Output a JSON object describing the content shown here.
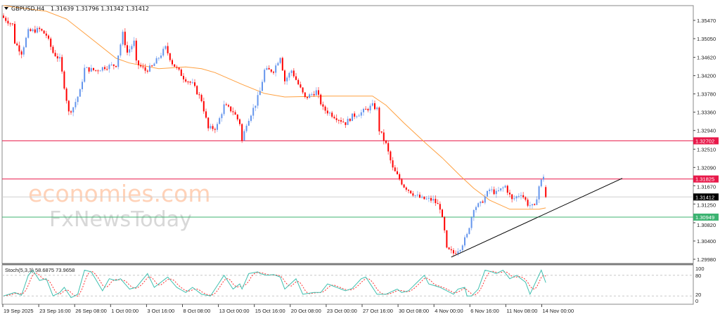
{
  "header": {
    "symbol": "GBPUSD,H4",
    "ohlc": "1.31639 1.31796 1.31342 1.31412"
  },
  "watermark": {
    "line1": "economies.com",
    "line2": "FxNewsToday"
  },
  "price_axis": {
    "ticks": [
      "1.35470",
      "1.35050",
      "1.34620",
      "1.34200",
      "1.33780",
      "1.33360",
      "1.32940",
      "1.32510",
      "1.32090",
      "1.31670",
      "1.31250",
      "1.30820",
      "1.30400",
      "1.29980"
    ],
    "range": [
      1.2998,
      1.3547
    ]
  },
  "levels": [
    {
      "label": "1.32702",
      "price": 1.32702,
      "color": "#e8194a"
    },
    {
      "label": "1.31825",
      "price": 1.31825,
      "color": "#e8194a"
    },
    {
      "label": "1.31412",
      "price": 1.31412,
      "color": "#000000"
    },
    {
      "label": "1.30949",
      "price": 1.30949,
      "color": "#3cb371"
    }
  ],
  "colors": {
    "bull": "#6495ed",
    "bear": "#ff0000",
    "ma": "#ffa040",
    "stoch_main": "#40c0b0",
    "stoch_signal": "#ff3030",
    "trendline": "#000000"
  },
  "chart_data": {
    "type": "candlestick",
    "timeframe": "H4",
    "close_path": [
      [
        0,
        1.3553
      ],
      [
        4,
        1.3537
      ],
      [
        5,
        1.3497
      ],
      [
        8,
        1.3473
      ],
      [
        11,
        1.3521
      ],
      [
        16,
        1.3526
      ],
      [
        19,
        1.3513
      ],
      [
        22,
        1.3473
      ],
      [
        25,
        1.3457
      ],
      [
        29,
        1.3335
      ],
      [
        31,
        1.3348
      ],
      [
        34,
        1.3384
      ],
      [
        36,
        1.3436
      ],
      [
        41,
        1.3432
      ],
      [
        45,
        1.344
      ],
      [
        50,
        1.3445
      ],
      [
        53,
        1.3516
      ],
      [
        55,
        1.3473
      ],
      [
        58,
        1.3497
      ],
      [
        59,
        1.3449
      ],
      [
        63,
        1.3432
      ],
      [
        66,
        1.344
      ],
      [
        72,
        1.3484
      ],
      [
        75,
        1.3449
      ],
      [
        80,
        1.3416
      ],
      [
        84,
        1.34
      ],
      [
        88,
        1.3364
      ],
      [
        91,
        1.3298
      ],
      [
        94,
        1.33
      ],
      [
        95,
        1.3306
      ],
      [
        98,
        1.3351
      ],
      [
        102,
        1.3338
      ],
      [
        105,
        1.3311
      ],
      [
        106,
        1.327
      ],
      [
        108,
        1.3311
      ],
      [
        112,
        1.3355
      ],
      [
        114,
        1.3384
      ],
      [
        116,
        1.3432
      ],
      [
        120,
        1.3432
      ],
      [
        123,
        1.3465
      ],
      [
        125,
        1.3408
      ],
      [
        128,
        1.3432
      ],
      [
        131,
        1.34
      ],
      [
        134,
        1.3368
      ],
      [
        139,
        1.3384
      ],
      [
        142,
        1.3344
      ],
      [
        147,
        1.3327
      ],
      [
        152,
        1.3311
      ],
      [
        155,
        1.3327
      ],
      [
        159,
        1.3335
      ],
      [
        164,
        1.3351
      ],
      [
        166,
        1.3343
      ],
      [
        167,
        1.3295
      ],
      [
        170,
        1.3262
      ],
      [
        173,
        1.3206
      ],
      [
        178,
        1.3166
      ],
      [
        183,
        1.3145
      ],
      [
        186,
        1.3137
      ],
      [
        191,
        1.3134
      ],
      [
        194,
        1.3117
      ],
      [
        196,
        1.3061
      ],
      [
        197,
        1.302
      ],
      [
        200,
        1.3012
      ],
      [
        203,
        1.3025
      ],
      [
        206,
        1.3053
      ],
      [
        209,
        1.3117
      ],
      [
        212,
        1.3125
      ],
      [
        216,
        1.3158
      ],
      [
        219,
        1.315
      ],
      [
        223,
        1.3166
      ],
      [
        226,
        1.3134
      ],
      [
        230,
        1.315
      ],
      [
        233,
        1.3125
      ],
      [
        236,
        1.3117
      ],
      [
        238,
        1.3166
      ],
      [
        240,
        1.319
      ],
      [
        241,
        1.31412
      ]
    ],
    "moving_average": [
      [
        0,
        1.3581
      ],
      [
        19,
        1.3568
      ],
      [
        28,
        1.355
      ],
      [
        41,
        1.3497
      ],
      [
        50,
        1.346
      ],
      [
        56,
        1.3449
      ],
      [
        69,
        1.3436
      ],
      [
        81,
        1.344
      ],
      [
        88,
        1.3436
      ],
      [
        94,
        1.3427
      ],
      [
        106,
        1.34
      ],
      [
        116,
        1.3379
      ],
      [
        125,
        1.3371
      ],
      [
        144,
        1.3373
      ],
      [
        164,
        1.3373
      ],
      [
        170,
        1.3352
      ],
      [
        178,
        1.3311
      ],
      [
        188,
        1.3263
      ],
      [
        195,
        1.3231
      ],
      [
        203,
        1.319
      ],
      [
        209,
        1.3161
      ],
      [
        216,
        1.3134
      ],
      [
        225,
        1.3113
      ],
      [
        238,
        1.3113
      ],
      [
        241,
        1.3116
      ]
    ],
    "trendline": [
      [
        199,
        1.3003
      ],
      [
        275,
        1.3184
      ]
    ],
    "time_labels": [
      "19 Sep 2025",
      "23 Sep 16:00",
      "26 Sep 08:00",
      "1 Oct 00:00",
      "3 Oct 16:00",
      "8 Oct 08:00",
      "13 Oct 00:00",
      "15 Oct 16:00",
      "20 Oct 08:00",
      "23 Oct 00:00",
      "27 Oct 16:00",
      "30 Oct 08:00",
      "4 Nov 00:00",
      "6 Nov 16:00",
      "11 Nov 08:00",
      "14 Nov 00:00"
    ]
  },
  "stochastic": {
    "label": "Stoch(5,3,3) 58.6875 73.9658",
    "levels": [
      "100",
      "80",
      "20",
      "0"
    ],
    "k_path": [
      [
        0,
        20
      ],
      [
        5,
        30
      ],
      [
        8,
        22
      ],
      [
        11,
        80
      ],
      [
        13,
        95
      ],
      [
        16,
        65
      ],
      [
        19,
        70
      ],
      [
        22,
        20
      ],
      [
        25,
        30
      ],
      [
        27,
        45
      ],
      [
        30,
        15
      ],
      [
        33,
        25
      ],
      [
        36,
        95
      ],
      [
        39,
        90
      ],
      [
        44,
        35
      ],
      [
        47,
        70
      ],
      [
        50,
        65
      ],
      [
        52,
        70
      ],
      [
        56,
        40
      ],
      [
        59,
        45
      ],
      [
        64,
        85
      ],
      [
        67,
        45
      ],
      [
        73,
        75
      ],
      [
        77,
        45
      ],
      [
        81,
        30
      ],
      [
        84,
        45
      ],
      [
        88,
        25
      ],
      [
        92,
        20
      ],
      [
        98,
        80
      ],
      [
        102,
        40
      ],
      [
        105,
        55
      ],
      [
        106,
        40
      ],
      [
        109,
        85
      ],
      [
        113,
        90
      ],
      [
        114,
        85
      ],
      [
        117,
        80
      ],
      [
        120,
        82
      ],
      [
        123,
        75
      ],
      [
        125,
        40
      ],
      [
        130,
        70
      ],
      [
        133,
        25
      ],
      [
        138,
        30
      ],
      [
        141,
        30
      ],
      [
        144,
        55
      ],
      [
        148,
        45
      ],
      [
        152,
        35
      ],
      [
        155,
        42
      ],
      [
        159,
        70
      ],
      [
        161,
        75
      ],
      [
        166,
        25
      ],
      [
        170,
        25
      ],
      [
        175,
        40
      ],
      [
        177,
        30
      ],
      [
        180,
        35
      ],
      [
        187,
        80
      ],
      [
        189,
        55
      ],
      [
        194,
        45
      ],
      [
        197,
        35
      ],
      [
        200,
        25
      ],
      [
        202,
        40
      ],
      [
        205,
        45
      ],
      [
        206,
        20
      ],
      [
        208,
        20
      ],
      [
        211,
        40
      ],
      [
        214,
        95
      ],
      [
        217,
        90
      ],
      [
        219,
        85
      ],
      [
        222,
        95
      ],
      [
        225,
        70
      ],
      [
        228,
        80
      ],
      [
        232,
        60
      ],
      [
        234,
        25
      ],
      [
        239,
        95
      ],
      [
        241,
        58.69
      ]
    ]
  }
}
